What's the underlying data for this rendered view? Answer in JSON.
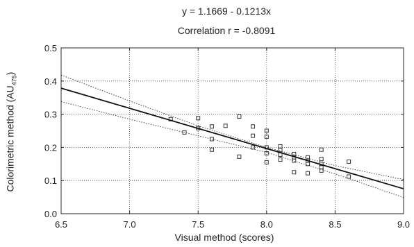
{
  "chart_data": {
    "type": "scatter",
    "title": "y = 1.1669 - 0.1213x",
    "subtitle": "Correlation r = -0.8091",
    "xlabel": "Visual method (scores)",
    "ylabel_main": "Colorimetric method (AU",
    "ylabel_sub": "475",
    "ylabel_close": ")",
    "xlim": [
      6.5,
      9.0
    ],
    "ylim": [
      0.0,
      0.5
    ],
    "xticks": [
      "6.5",
      "7.0",
      "7.5",
      "8.0",
      "8.5",
      "9.0"
    ],
    "yticks": [
      "0.0",
      "0.1",
      "0.2",
      "0.3",
      "0.4",
      "0.5"
    ],
    "grid": true,
    "grid_style": "dotted",
    "marker": "square",
    "regression": {
      "intercept": 1.1669,
      "slope": -0.1213
    },
    "confidence_band": {
      "upper": [
        [
          6.5,
          0.418
        ],
        [
          7.0,
          0.34
        ],
        [
          7.5,
          0.265
        ],
        [
          8.0,
          0.2
        ],
        [
          8.5,
          0.145
        ],
        [
          9.0,
          0.103
        ]
      ],
      "lower": [
        [
          6.5,
          0.338
        ],
        [
          7.0,
          0.285
        ],
        [
          7.5,
          0.235
        ],
        [
          8.0,
          0.185
        ],
        [
          8.5,
          0.12
        ],
        [
          9.0,
          0.049
        ]
      ]
    },
    "points": [
      [
        7.3,
        0.285
      ],
      [
        7.4,
        0.245
      ],
      [
        7.5,
        0.288
      ],
      [
        7.5,
        0.258
      ],
      [
        7.6,
        0.263
      ],
      [
        7.6,
        0.225
      ],
      [
        7.6,
        0.193
      ],
      [
        7.7,
        0.265
      ],
      [
        7.8,
        0.293
      ],
      [
        7.8,
        0.172
      ],
      [
        7.9,
        0.263
      ],
      [
        7.9,
        0.235
      ],
      [
        7.9,
        0.2
      ],
      [
        8.0,
        0.25
      ],
      [
        8.0,
        0.232
      ],
      [
        8.0,
        0.2
      ],
      [
        8.0,
        0.182
      ],
      [
        8.0,
        0.155
      ],
      [
        8.1,
        0.203
      ],
      [
        8.1,
        0.192
      ],
      [
        8.1,
        0.178
      ],
      [
        8.1,
        0.163
      ],
      [
        8.2,
        0.18
      ],
      [
        8.2,
        0.17
      ],
      [
        8.2,
        0.16
      ],
      [
        8.2,
        0.125
      ],
      [
        8.3,
        0.17
      ],
      [
        8.3,
        0.16
      ],
      [
        8.3,
        0.15
      ],
      [
        8.3,
        0.122
      ],
      [
        8.4,
        0.193
      ],
      [
        8.4,
        0.165
      ],
      [
        8.4,
        0.15
      ],
      [
        8.4,
        0.14
      ],
      [
        8.4,
        0.13
      ],
      [
        8.6,
        0.157
      ],
      [
        8.6,
        0.112
      ]
    ]
  }
}
